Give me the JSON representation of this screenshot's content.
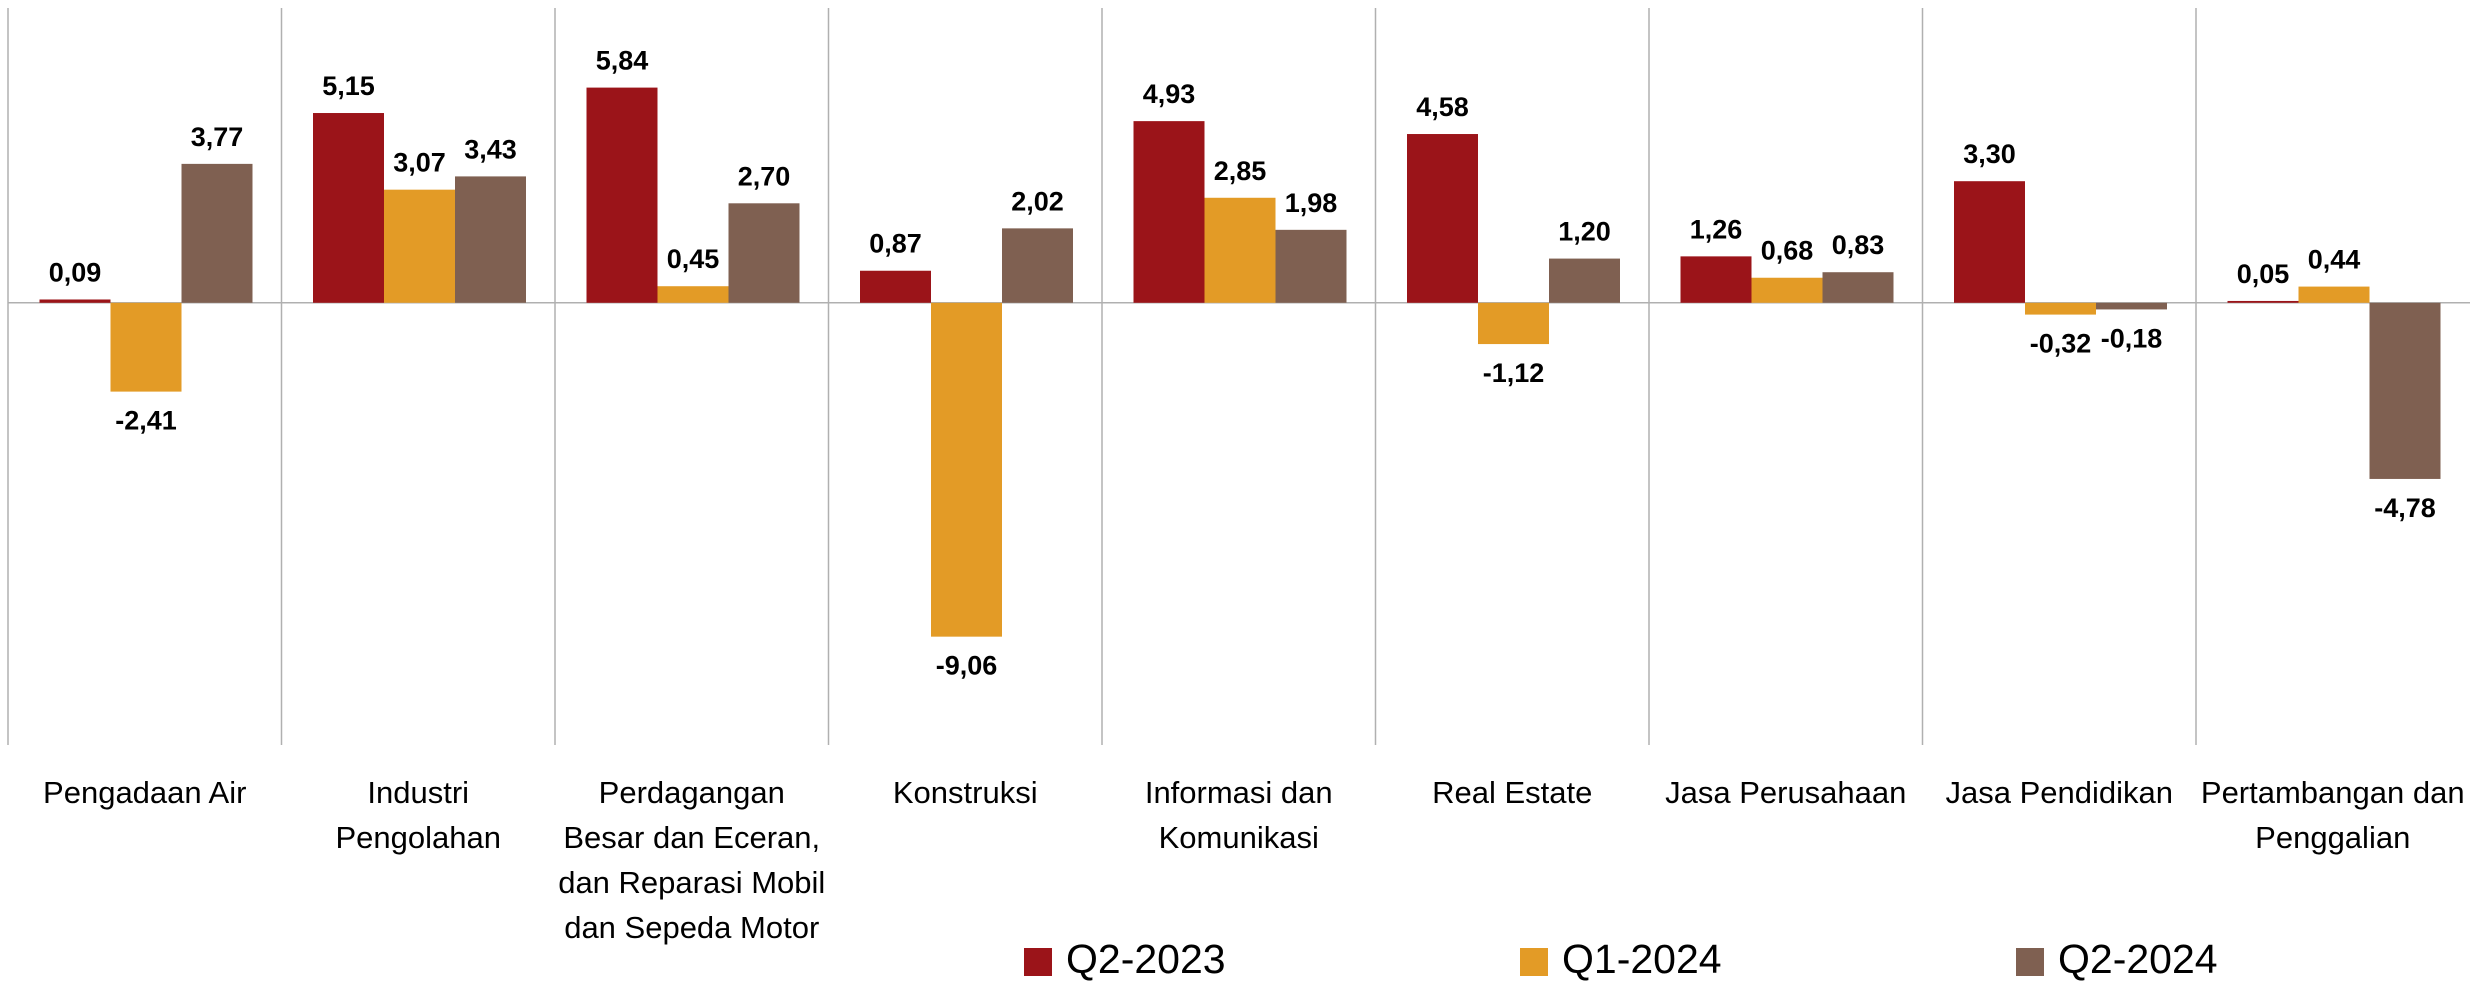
{
  "chart_data": {
    "type": "bar",
    "categories": [
      "Pengadaan Air",
      "Industri Pengolahan",
      "Perdagangan Besar dan Eceran, dan Reparasi Mobil dan Sepeda Motor",
      "Konstruksi",
      "Informasi dan Komunikasi",
      "Real Estate",
      "Jasa Perusahaan",
      "Jasa Pendidikan",
      "Pertambangan dan Penggalian"
    ],
    "series": [
      {
        "name": "Q2-2023",
        "color": "#9b1419",
        "values": [
          0.09,
          5.15,
          5.84,
          0.87,
          4.93,
          4.58,
          1.26,
          3.3,
          0.05
        ],
        "value_labels": [
          "0,09",
          "5,15",
          "5,84",
          "0,87",
          "4,93",
          "4,58",
          "1,26",
          "3,30",
          "0,05"
        ]
      },
      {
        "name": "Q1-2024",
        "color": "#e39b26",
        "values": [
          -2.41,
          3.07,
          0.45,
          -9.06,
          2.85,
          -1.12,
          0.68,
          -0.32,
          0.44
        ],
        "value_labels": [
          "-2,41",
          "3,07",
          "0,45",
          "-9,06",
          "2,85",
          "-1,12",
          "0,68",
          "-0,32",
          "0,44"
        ]
      },
      {
        "name": "Q2-2024",
        "color": "#7f6051",
        "values": [
          3.77,
          3.43,
          2.7,
          2.02,
          1.98,
          1.2,
          0.83,
          -0.18,
          -4.78
        ],
        "value_labels": [
          "3,77",
          "3,43",
          "2,70",
          "2,02",
          "1,98",
          "1,20",
          "0,83",
          "-0,18",
          "-4,78"
        ]
      }
    ],
    "ylim": [
      -12,
      8
    ],
    "legend": "bottom"
  }
}
